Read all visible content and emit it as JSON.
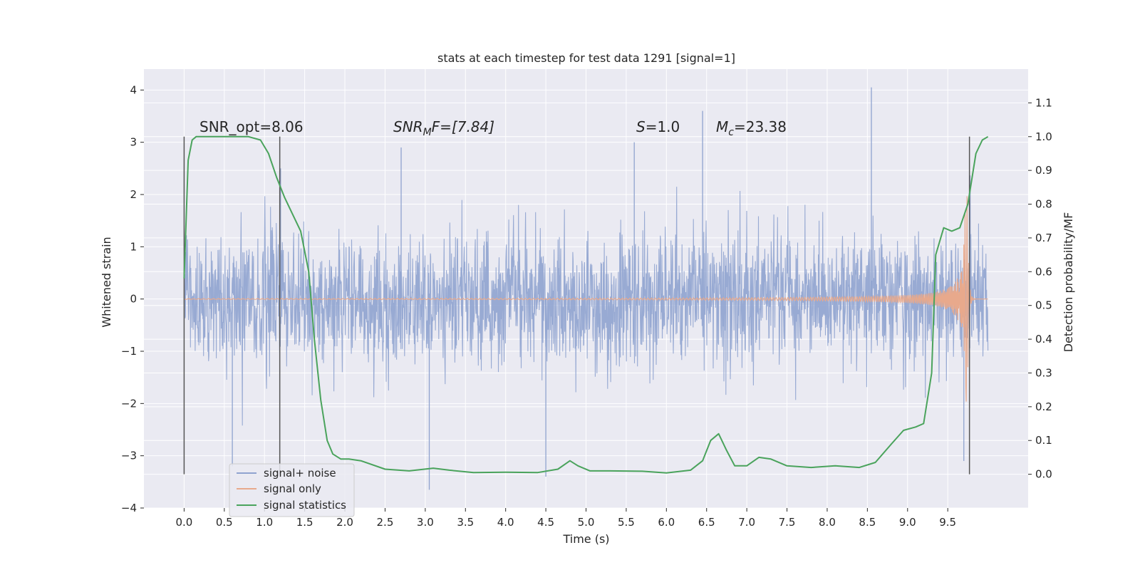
{
  "chart_data": {
    "type": "line",
    "title": "stats at each timestep for test data 1291 [signal=1]",
    "xlabel": "Time (s)",
    "ylabel": "Whitened strain",
    "y2label": "Detection probability/MF",
    "xlim": [
      -0.5,
      10.5
    ],
    "ylim": [
      -4,
      4.4
    ],
    "y2lim": [
      -0.1,
      1.2
    ],
    "x_ticks": [
      "0.0",
      "0.5",
      "1.0",
      "1.5",
      "2.0",
      "2.5",
      "3.0",
      "3.5",
      "4.0",
      "4.5",
      "5.0",
      "5.5",
      "6.0",
      "6.5",
      "7.0",
      "7.5",
      "8.0",
      "8.5",
      "9.0",
      "9.5"
    ],
    "y_ticks": [
      "4",
      "3",
      "2",
      "1",
      "0",
      "−1",
      "−2",
      "−3",
      "−4"
    ],
    "y2_ticks": [
      "1.1",
      "1.0",
      "0.9",
      "0.8",
      "0.7",
      "0.6",
      "0.5",
      "0.4",
      "0.3",
      "0.2",
      "0.1",
      "0.0"
    ],
    "grid": true,
    "legend_position": "lower-left",
    "annotations": {
      "snr_opt": "SNR_opt=8.06",
      "snr_mf_main": "SNR",
      "snr_mf_sub": "M",
      "snr_mf_rest": "F=[7.84]",
      "s_main": "S",
      "s_rest": "=1.0",
      "mc_main": "M",
      "mc_sub": "c",
      "mc_rest": "=23.38"
    },
    "vertical_markers_x": [
      0.0,
      1.19,
      9.77
    ],
    "series": [
      {
        "name": "signal+ noise",
        "color": "#8fa3cf",
        "description_type": "noise",
        "x_range": [
          0.0,
          10.0
        ],
        "typical_amplitude": 1.6,
        "peaks": [
          {
            "x": 0.6,
            "y": -3.2
          },
          {
            "x": 1.2,
            "y": 2.5
          },
          {
            "x": 2.7,
            "y": 2.9
          },
          {
            "x": 3.05,
            "y": -3.65
          },
          {
            "x": 4.5,
            "y": -3.4
          },
          {
            "x": 5.6,
            "y": 3.0
          },
          {
            "x": 6.45,
            "y": 3.6
          },
          {
            "x": 8.55,
            "y": 4.05
          },
          {
            "x": 9.7,
            "y": -3.1
          }
        ]
      },
      {
        "name": "signal only",
        "color": "#e8a98c",
        "description_type": "chirp",
        "x_range": [
          0.0,
          10.0
        ],
        "merger_x": 9.74,
        "peak_amplitude": 2.4
      },
      {
        "name": "signal statistics",
        "color": "#4aa35c",
        "axis": "right",
        "x": [
          0.0,
          0.05,
          0.1,
          0.15,
          0.2,
          0.3,
          0.5,
          0.8,
          0.95,
          1.05,
          1.15,
          1.25,
          1.35,
          1.45,
          1.55,
          1.62,
          1.7,
          1.78,
          1.85,
          1.95,
          2.05,
          2.2,
          2.5,
          2.8,
          3.1,
          3.3,
          3.6,
          4.0,
          4.4,
          4.65,
          4.8,
          4.9,
          5.05,
          5.3,
          5.7,
          6.0,
          6.3,
          6.45,
          6.55,
          6.65,
          6.75,
          6.85,
          7.0,
          7.15,
          7.3,
          7.5,
          7.8,
          8.1,
          8.4,
          8.6,
          8.8,
          8.95,
          9.1,
          9.2,
          9.3,
          9.35,
          9.45,
          9.55,
          9.65,
          9.75,
          9.85,
          9.93,
          10.0
        ],
        "y": [
          0.58,
          0.93,
          0.99,
          1.0,
          1.0,
          1.0,
          1.0,
          1.0,
          0.99,
          0.95,
          0.88,
          0.82,
          0.77,
          0.72,
          0.6,
          0.4,
          0.22,
          0.1,
          0.06,
          0.045,
          0.045,
          0.04,
          0.015,
          0.01,
          0.018,
          0.012,
          0.005,
          0.006,
          0.005,
          0.015,
          0.04,
          0.025,
          0.01,
          0.01,
          0.009,
          0.004,
          0.012,
          0.04,
          0.1,
          0.12,
          0.07,
          0.025,
          0.025,
          0.05,
          0.045,
          0.025,
          0.02,
          0.025,
          0.02,
          0.035,
          0.09,
          0.13,
          0.14,
          0.15,
          0.3,
          0.65,
          0.73,
          0.72,
          0.73,
          0.8,
          0.95,
          0.99,
          1.0
        ]
      }
    ]
  },
  "legend": {
    "items": [
      {
        "label": "signal+ noise",
        "color": "#8fa3cf"
      },
      {
        "label": "signal only",
        "color": "#e8a98c"
      },
      {
        "label": "signal statistics",
        "color": "#4aa35c"
      }
    ]
  },
  "colors": {
    "plot_bg": "#eaeaf2",
    "grid": "#ffffff",
    "marker_line": "#555555"
  }
}
